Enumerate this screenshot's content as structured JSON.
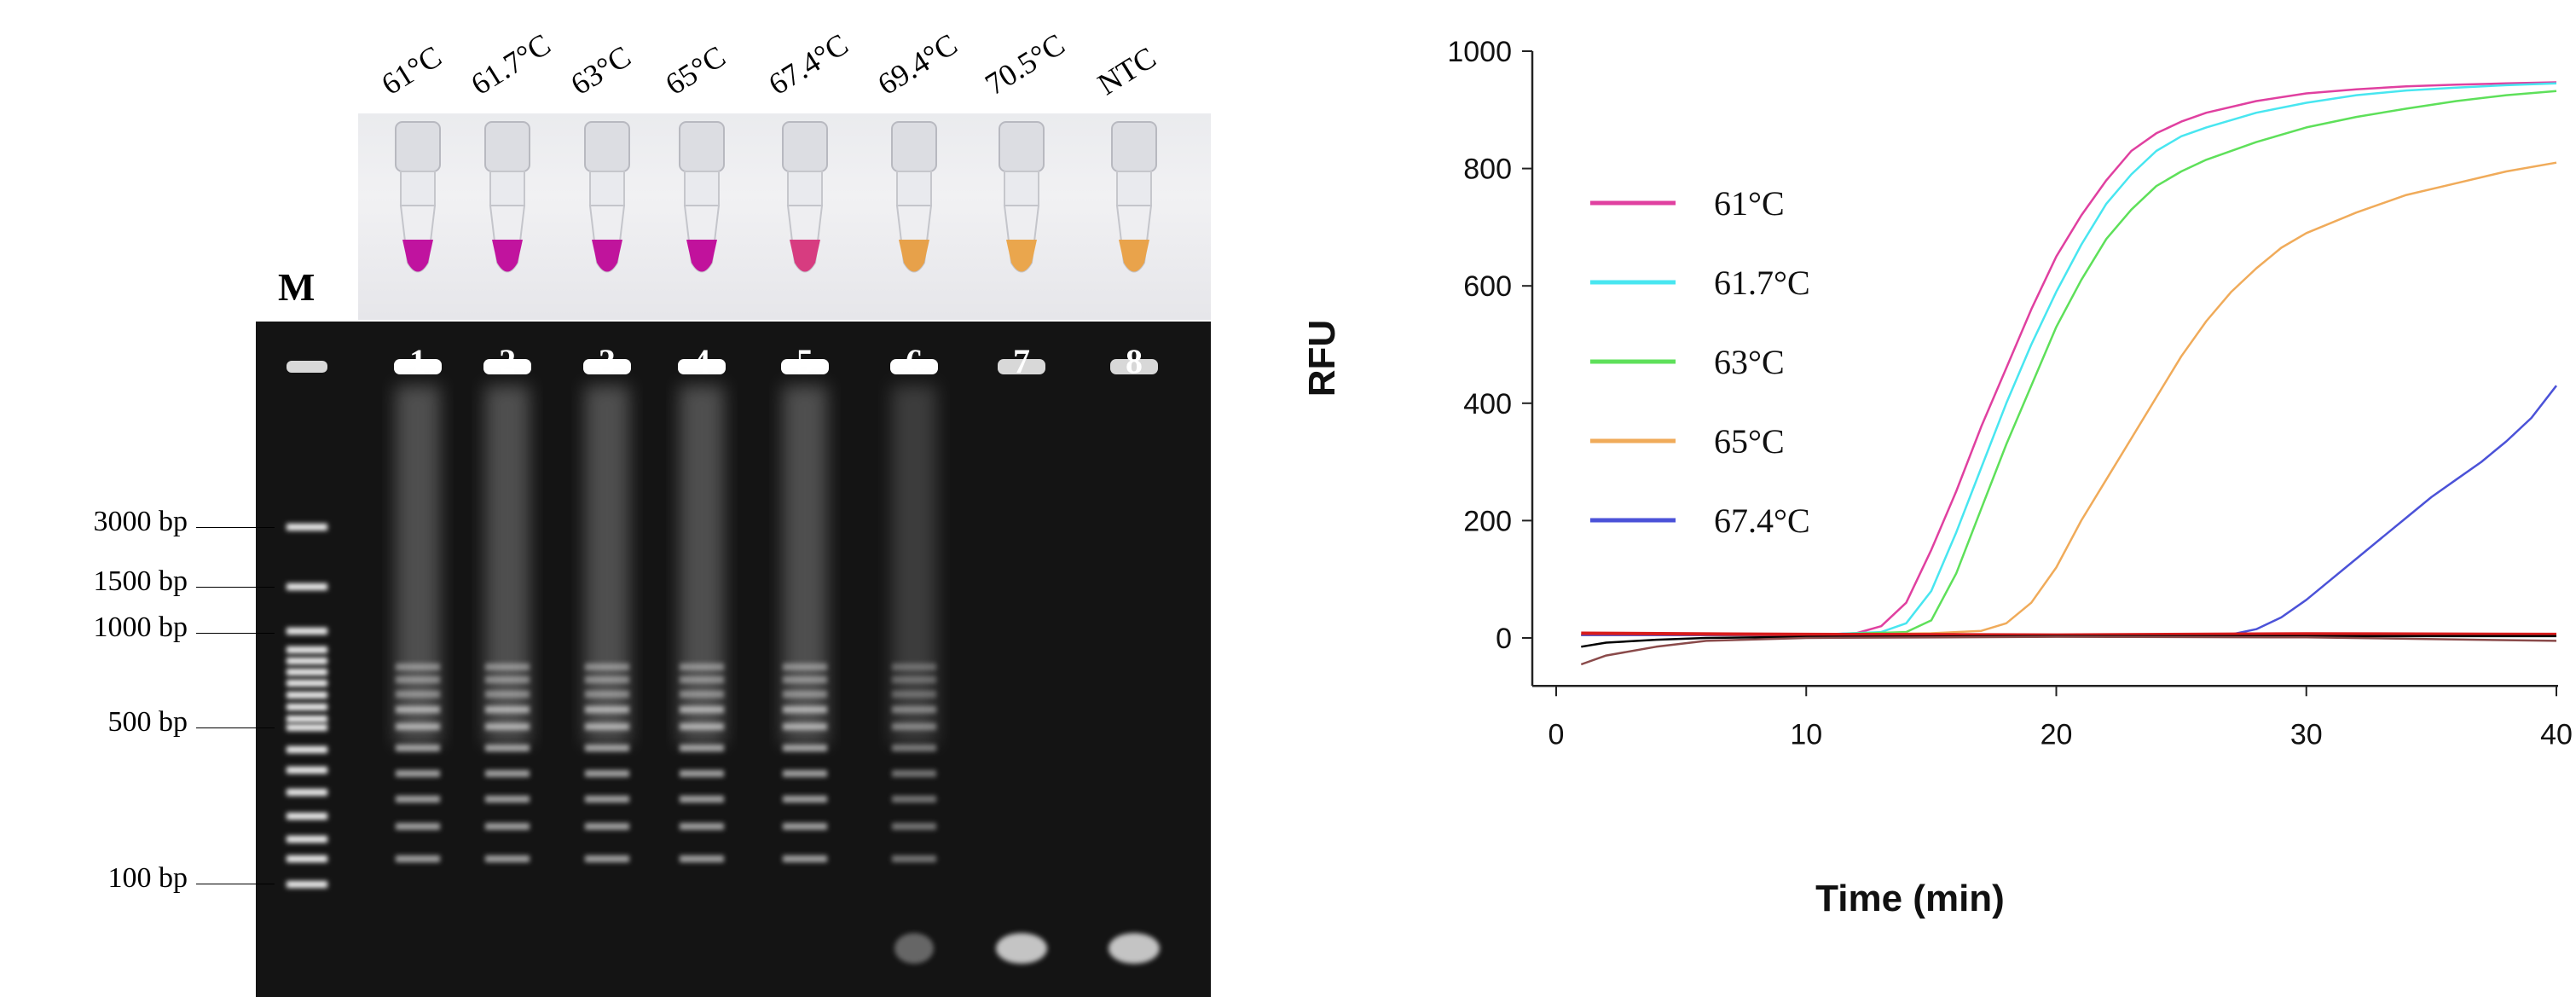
{
  "figure": {
    "tube_labels": [
      "61°C",
      "61.7°C",
      "63°C",
      "65°C",
      "67.4°C",
      "69.4°C",
      "70.5°C",
      "NTC"
    ],
    "tube_colors": [
      "#c0139f",
      "#c1139e",
      "#c0149c",
      "#c1129c",
      "#d73c80",
      "#e7a14a",
      "#eaa64d",
      "#e9a34b"
    ],
    "marker_label": "M",
    "lane_numbers": [
      "1",
      "2",
      "3",
      "4",
      "5",
      "6",
      "7",
      "8"
    ],
    "bp_labels": [
      "3000 bp",
      "1500 bp",
      "1000 bp",
      "500 bp",
      "100 bp"
    ]
  },
  "chart_data": {
    "type": "line",
    "title": "",
    "xlabel": "Time (min)",
    "ylabel": "RFU",
    "xlim": [
      0,
      40
    ],
    "ylim": [
      -60,
      1000
    ],
    "xticks": [
      "0",
      "10",
      "20",
      "30",
      "40"
    ],
    "yticks": [
      "0",
      "200",
      "400",
      "600",
      "800",
      "1000"
    ],
    "legend_position": "left",
    "series": [
      {
        "name": "61°C",
        "color": "#e040a0",
        "x": [
          1,
          5,
          10,
          12,
          13,
          14,
          15,
          16,
          17,
          18,
          19,
          20,
          21,
          22,
          23,
          24,
          25,
          26,
          28,
          30,
          32,
          34,
          36,
          38,
          40
        ],
        "y": [
          5,
          5,
          5,
          8,
          20,
          60,
          150,
          250,
          360,
          460,
          560,
          650,
          720,
          780,
          830,
          860,
          880,
          895,
          915,
          928,
          935,
          940,
          943,
          945,
          947
        ]
      },
      {
        "name": "61.7°C",
        "color": "#48e6f0",
        "x": [
          1,
          5,
          10,
          13,
          14,
          15,
          16,
          17,
          18,
          19,
          20,
          21,
          22,
          23,
          24,
          25,
          26,
          28,
          30,
          32,
          34,
          36,
          38,
          40
        ],
        "y": [
          5,
          5,
          5,
          10,
          25,
          80,
          180,
          290,
          400,
          500,
          590,
          670,
          740,
          790,
          830,
          855,
          870,
          895,
          912,
          925,
          933,
          938,
          942,
          945
        ]
      },
      {
        "name": "63°C",
        "color": "#5ee05a",
        "x": [
          1,
          5,
          10,
          14,
          15,
          16,
          17,
          18,
          19,
          20,
          21,
          22,
          23,
          24,
          25,
          26,
          28,
          30,
          32,
          34,
          36,
          38,
          40
        ],
        "y": [
          5,
          5,
          5,
          10,
          30,
          110,
          220,
          330,
          430,
          530,
          610,
          680,
          730,
          770,
          795,
          815,
          845,
          870,
          888,
          902,
          915,
          925,
          932
        ]
      },
      {
        "name": "65°C",
        "color": "#f0ab5a",
        "x": [
          1,
          5,
          10,
          15,
          17,
          18,
          19,
          20,
          21,
          22,
          23,
          24,
          25,
          26,
          27,
          28,
          29,
          30,
          32,
          34,
          36,
          38,
          40
        ],
        "y": [
          5,
          5,
          5,
          8,
          12,
          25,
          60,
          120,
          200,
          270,
          340,
          410,
          480,
          540,
          590,
          630,
          665,
          690,
          725,
          755,
          775,
          795,
          810
        ]
      },
      {
        "name": "67.4°C",
        "color": "#4b52d8",
        "x": [
          1,
          5,
          10,
          15,
          20,
          25,
          27,
          28,
          29,
          30,
          31,
          32,
          33,
          34,
          35,
          36,
          37,
          38,
          39,
          40
        ],
        "y": [
          5,
          5,
          5,
          5,
          5,
          5,
          6,
          15,
          35,
          65,
          100,
          135,
          170,
          205,
          240,
          270,
          300,
          335,
          375,
          430
        ]
      },
      {
        "name": "",
        "color": "#d81c1c",
        "x": [
          1,
          10,
          20,
          30,
          40
        ],
        "y": [
          8,
          6,
          5,
          7,
          6
        ]
      },
      {
        "name": "",
        "color": "#000000",
        "x": [
          1,
          2,
          4,
          6,
          10,
          20,
          30,
          40
        ],
        "y": [
          -15,
          -8,
          -3,
          0,
          2,
          3,
          3,
          3
        ]
      },
      {
        "name": "",
        "color": "#8a4a4a",
        "x": [
          1,
          2,
          4,
          6,
          10,
          20,
          30,
          40
        ],
        "y": [
          -45,
          -30,
          -15,
          -5,
          0,
          2,
          1,
          -5
        ]
      }
    ]
  }
}
